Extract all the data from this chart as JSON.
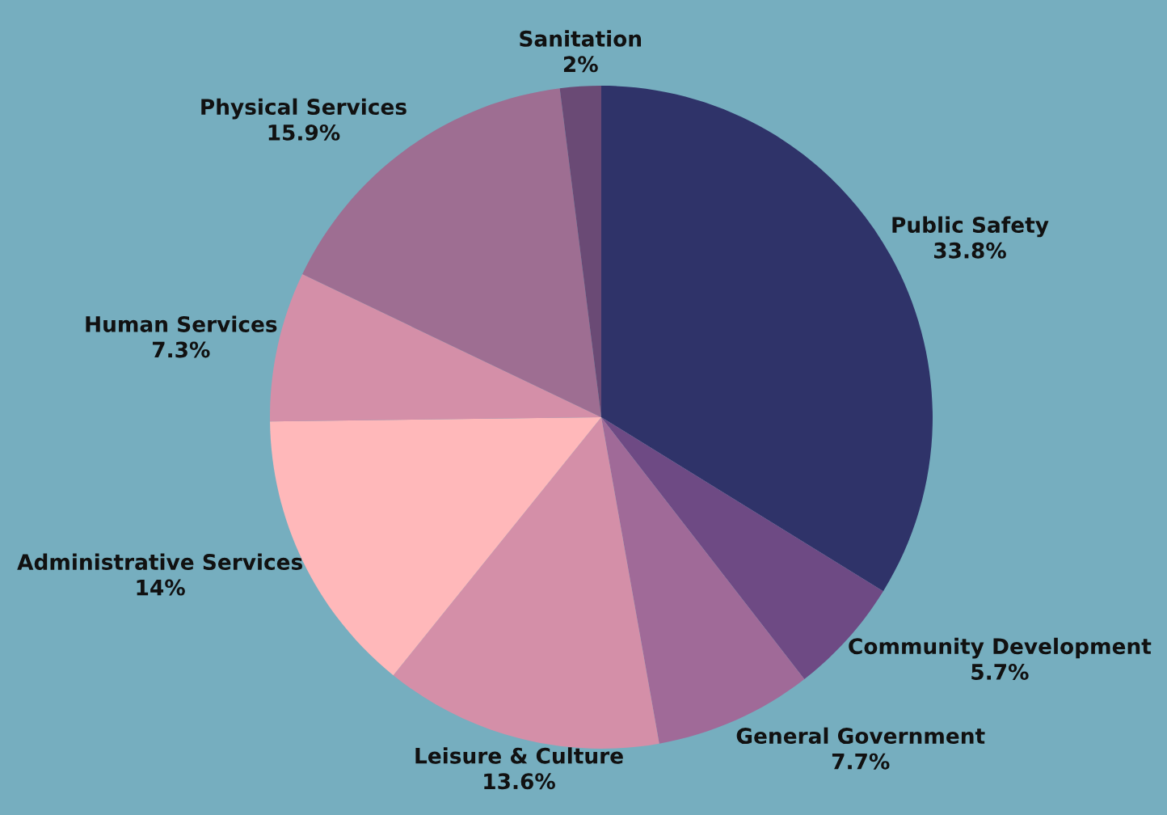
{
  "chart_data": {
    "type": "pie",
    "categories": [
      "Public Safety",
      "Community Development",
      "General Government",
      "Leisure & Culture",
      "Administrative Services",
      "Human Services",
      "Physical Services",
      "Sanitation"
    ],
    "values": [
      33.8,
      5.7,
      7.7,
      13.6,
      14,
      7.3,
      15.9,
      2
    ],
    "value_labels": [
      "33.8%",
      "5.7%",
      "7.7%",
      "13.6%",
      "14%",
      "7.3%",
      "15.9%",
      "2%"
    ],
    "colors": [
      "#2f3369",
      "#6e4a84",
      "#a06a98",
      "#d48fa8",
      "#ffb8ba",
      "#d48fa8",
      "#9e6e92",
      "#6a4a75"
    ],
    "legend": false
  }
}
